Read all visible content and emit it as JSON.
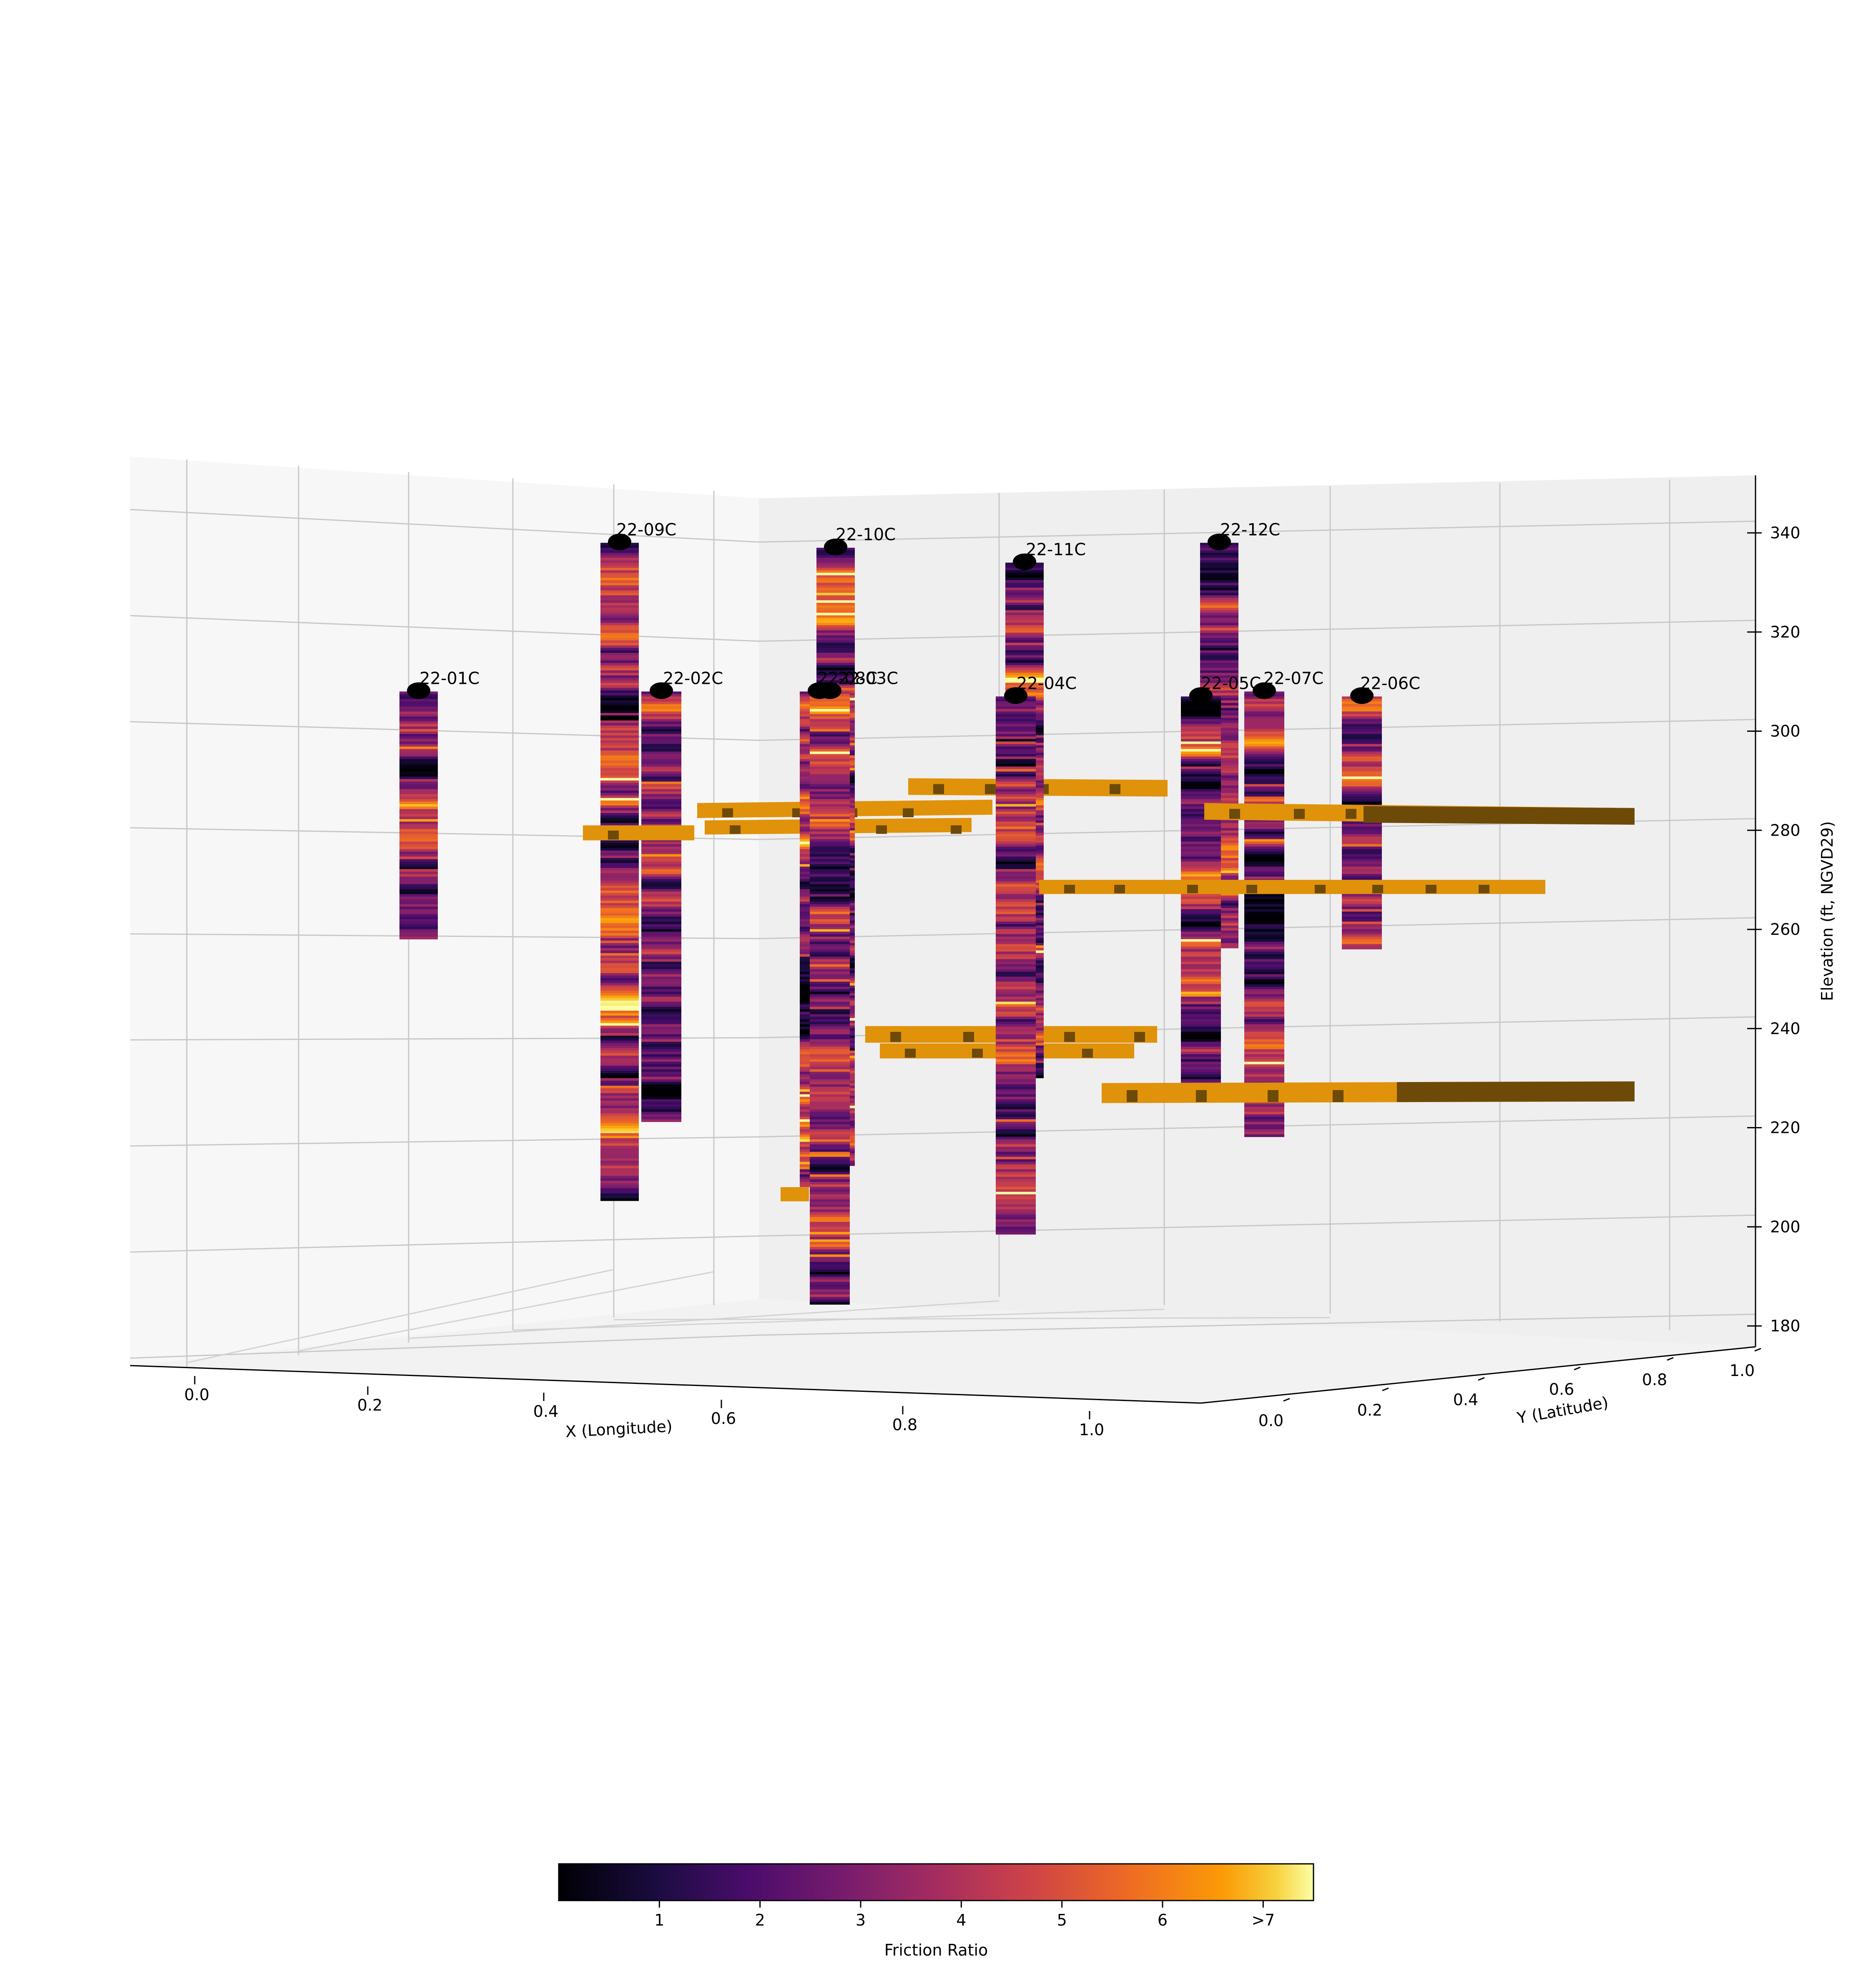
{
  "chart_data": {
    "type": "3d-borehole-columns",
    "title": "",
    "xlabel": "X (Longitude)",
    "ylabel": "Y (Latitude)",
    "zlabel": "Elevation (ft, NGVD29)",
    "x_ticks": [
      "0.0",
      "0.2",
      "0.4",
      "0.6",
      "0.8",
      "1.0"
    ],
    "y_ticks": [
      "0.0",
      "0.2",
      "0.4",
      "0.6",
      "0.8",
      "1.0"
    ],
    "z_ticks": [
      "180",
      "200",
      "220",
      "240",
      "260",
      "280",
      "300",
      "320",
      "340"
    ],
    "zlim": [
      175,
      350
    ],
    "grid": true,
    "boreholes": [
      {
        "name": "22-01C",
        "top": 308,
        "bottom": 258
      },
      {
        "name": "22-09C",
        "top": 338,
        "bottom": 205
      },
      {
        "name": "22-02C",
        "top": 308,
        "bottom": 221
      },
      {
        "name": "22-10C",
        "top": 337,
        "bottom": 212
      },
      {
        "name": "22-08C",
        "top": 308,
        "bottom": 208
      },
      {
        "name": "22-03C",
        "top": 308,
        "bottom": 184
      },
      {
        "name": "22-11C",
        "top": 334,
        "bottom": 230
      },
      {
        "name": "22-04C",
        "top": 307,
        "bottom": 198
      },
      {
        "name": "22-12C",
        "top": 338,
        "bottom": 256
      },
      {
        "name": "22-05C",
        "top": 307,
        "bottom": 228
      },
      {
        "name": "22-07C",
        "top": 308,
        "bottom": 218
      },
      {
        "name": "22-06C",
        "top": 307,
        "bottom": 256
      }
    ],
    "colorbar": {
      "label": "Friction Ratio",
      "colormap": "inferno",
      "range": [
        0,
        7.5
      ],
      "ticks": [
        "1",
        "2",
        "3",
        "4",
        "5",
        "6",
        ">7"
      ]
    },
    "layer_color": "#e0920a",
    "layer_shade_color": "#6e4a08"
  }
}
